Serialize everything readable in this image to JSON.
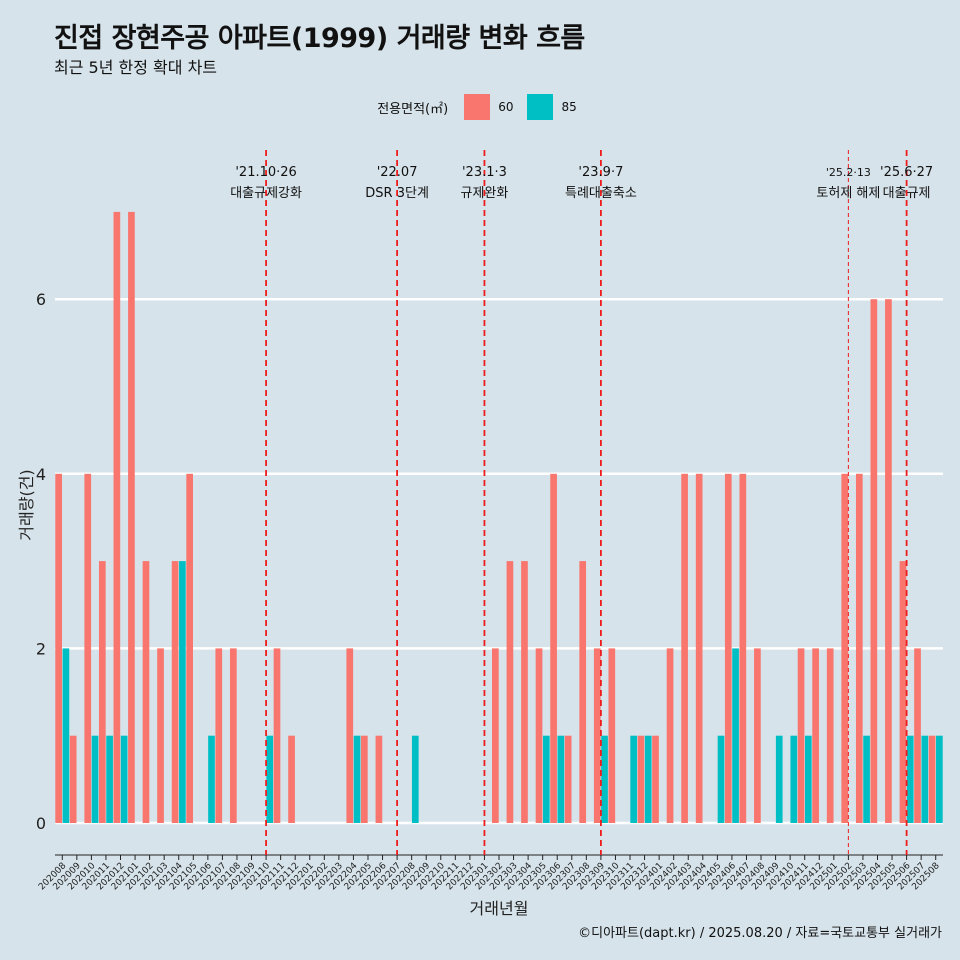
{
  "title": "진접 장현주공 아파트(1999) 거래량 변화 흐름",
  "subtitle": "최근 5년 한정 확대 차트",
  "caption": "©디아파트(dapt.kr) / 2025.08.20 / 자료=국토교통부 실거래가",
  "legend": {
    "title": "전용면적(㎡)",
    "items": [
      {
        "label": "60",
        "color": "#f8766d"
      },
      {
        "label": "85",
        "color": "#00bfc4"
      }
    ]
  },
  "chart_data": {
    "type": "bar",
    "xlabel": "거래년월",
    "ylabel": "거래량(건)",
    "ylim": [
      0,
      7
    ],
    "yticks": [
      0,
      2,
      4,
      6
    ],
    "grid": "horizontal",
    "legend_position": "top",
    "categories": [
      "202008",
      "202009",
      "202010",
      "202011",
      "202012",
      "202101",
      "202102",
      "202103",
      "202104",
      "202105",
      "202106",
      "202107",
      "202108",
      "202109",
      "202110",
      "202111",
      "202112",
      "202201",
      "202202",
      "202203",
      "202204",
      "202205",
      "202206",
      "202207",
      "202208",
      "202209",
      "202210",
      "202211",
      "202212",
      "202301",
      "202302",
      "202303",
      "202304",
      "202305",
      "202306",
      "202307",
      "202308",
      "202309",
      "202310",
      "202311",
      "202312",
      "202401",
      "202402",
      "202403",
      "202404",
      "202405",
      "202406",
      "202407",
      "202408",
      "202409",
      "202410",
      "202411",
      "202412",
      "202501",
      "202502",
      "202503",
      "202504",
      "202505",
      "202506",
      "202507",
      "202508"
    ],
    "series": [
      {
        "name": "60",
        "color": "#f8766d",
        "values": [
          4,
          1,
          4,
          3,
          7,
          7,
          3,
          2,
          3,
          4,
          0,
          2,
          2,
          0,
          0,
          2,
          1,
          0,
          0,
          0,
          2,
          1,
          1,
          0,
          0,
          0,
          0,
          0,
          0,
          0,
          2,
          3,
          3,
          2,
          4,
          1,
          3,
          2,
          2,
          0,
          1,
          1,
          2,
          4,
          4,
          0,
          4,
          4,
          2,
          0,
          0,
          2,
          2,
          2,
          4,
          4,
          6,
          6,
          3,
          2,
          1
        ]
      },
      {
        "name": "85",
        "color": "#00bfc4",
        "values": [
          2,
          0,
          1,
          1,
          1,
          0,
          0,
          0,
          3,
          0,
          1,
          0,
          0,
          0,
          1,
          0,
          0,
          0,
          0,
          0,
          1,
          0,
          0,
          0,
          1,
          0,
          0,
          0,
          0,
          0,
          0,
          0,
          0,
          1,
          1,
          0,
          0,
          1,
          0,
          1,
          1,
          0,
          0,
          0,
          0,
          1,
          2,
          0,
          0,
          1,
          1,
          1,
          0,
          0,
          0,
          1,
          0,
          0,
          1,
          1,
          1
        ]
      }
    ],
    "annotations": [
      {
        "date": "'21.10·26",
        "label": "대출규제강화",
        "at": "202110",
        "style": "dashed"
      },
      {
        "date": "'22.07",
        "label": "DSR 3단계",
        "at": "202207",
        "style": "dashed"
      },
      {
        "date": "'23.1·3",
        "label": "규제완화",
        "at": "202301",
        "style": "dashed"
      },
      {
        "date": "'23.9·7",
        "label": "특례대출축소",
        "at": "202309",
        "style": "dashed"
      },
      {
        "date": "'25.2·13",
        "label": "토허제 해제",
        "at": "202502",
        "style": "thin-dashed"
      },
      {
        "date": "'25.6·27",
        "label": "대출규제",
        "at": "202506",
        "style": "dashed"
      }
    ]
  }
}
